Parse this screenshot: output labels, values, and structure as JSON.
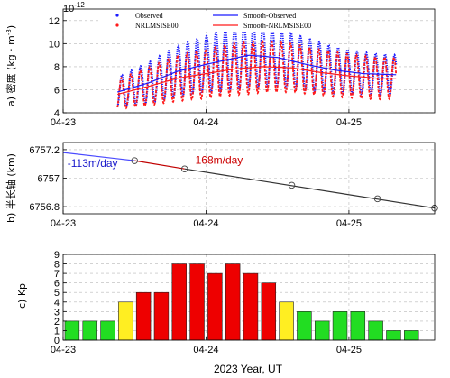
{
  "figure": {
    "xlabel": "2023 Year, UT"
  },
  "chart_data": [
    {
      "type": "line",
      "panel_label": "a)",
      "ylabel": "密度 (kg · m",
      "ylabel_exp": "-3",
      "ylabel_close": ")",
      "exponent": "10",
      "exponent_power": "-12",
      "xlim": [
        0,
        2.6
      ],
      "ylim": [
        4,
        13
      ],
      "yticks": [
        4,
        6,
        8,
        10,
        12
      ],
      "xticks": [
        {
          "x": 0,
          "label": "04-23"
        },
        {
          "x": 1,
          "label": "04-24"
        },
        {
          "x": 2,
          "label": "04-25"
        }
      ],
      "grid": true,
      "legend_placement": "top",
      "legend": [
        {
          "label": "Observed",
          "style": "dots",
          "color": "#1a1aff"
        },
        {
          "label": "Smooth-Observed",
          "style": "line",
          "color": "#1a1aff"
        },
        {
          "label": "NRLMSISE00",
          "style": "dots",
          "color": "#ff1a1a"
        },
        {
          "label": "Smooth-NRLMSISE00",
          "style": "line",
          "color": "#ff1a1a"
        }
      ],
      "oscillation": {
        "t_start": 0.38,
        "t_end": 2.33,
        "cycles_per_day": 15.2
      },
      "smooth_observed": {
        "t": [
          0.38,
          0.6,
          0.8,
          1.0,
          1.15,
          1.3,
          1.5,
          1.7,
          1.9,
          2.1,
          2.33
        ],
        "y": [
          5.8,
          6.6,
          7.6,
          8.2,
          8.6,
          9.0,
          8.8,
          8.2,
          7.7,
          7.4,
          7.3
        ]
      },
      "smooth_model": {
        "t": [
          0.38,
          0.6,
          0.8,
          1.0,
          1.2,
          1.4,
          1.6,
          1.8,
          2.0,
          2.2,
          2.33
        ],
        "y": [
          5.6,
          6.3,
          7.0,
          7.4,
          7.8,
          8.0,
          7.9,
          7.5,
          7.2,
          7.0,
          7.0
        ]
      },
      "amplitude_observed": {
        "t": [
          0.38,
          0.8,
          1.1,
          1.3,
          1.6,
          2.0,
          2.33
        ],
        "y": [
          1.3,
          2.2,
          2.6,
          2.8,
          2.4,
          1.9,
          1.7
        ]
      },
      "amplitude_model": {
        "t": [
          0.38,
          0.8,
          1.1,
          1.3,
          1.6,
          2.0,
          2.33
        ],
        "y": [
          1.3,
          2.0,
          2.2,
          2.3,
          2.1,
          1.9,
          1.8
        ]
      }
    },
    {
      "type": "line",
      "panel_label": "b)",
      "ylabel": "半长轴 (km)",
      "xlim": [
        0,
        2.6
      ],
      "ylim": [
        6756.75,
        6757.25
      ],
      "yticks": [
        6756.8,
        6757.0,
        6757.2
      ],
      "ytick_labels": [
        "6756.8",
        "6757",
        "6757.2"
      ],
      "xticks": [
        {
          "x": 0,
          "label": "04-23"
        },
        {
          "x": 1,
          "label": "04-24"
        },
        {
          "x": 2,
          "label": "04-25"
        }
      ],
      "grid": true,
      "series": [
        {
          "color": "#4a4aff",
          "x": [
            0,
            0.5
          ],
          "y": [
            6757.18,
            6757.123
          ]
        },
        {
          "color": "#c00000",
          "x": [
            0.5,
            0.85
          ],
          "y": [
            6757.123,
            6757.065
          ]
        },
        {
          "color": "#333333",
          "x": [
            0.85,
            2.6
          ],
          "y": [
            6757.065,
            6756.79
          ]
        }
      ],
      "markers": {
        "x": [
          0.5,
          0.85,
          1.6,
          2.2,
          2.6
        ],
        "y": [
          6757.123,
          6757.065,
          6756.95,
          6756.855,
          6756.79
        ]
      },
      "rates": [
        {
          "text": "-113m/day",
          "color": "#1a1acc",
          "x": 0.03,
          "y": 6757.08
        },
        {
          "text": "-168m/day",
          "color": "#cc0000",
          "x": 0.9,
          "y": 6757.1
        }
      ]
    },
    {
      "type": "bar",
      "panel_label": "c)",
      "ylabel": "Kp",
      "xlim": [
        0,
        2.6
      ],
      "ylim": [
        0,
        9
      ],
      "yticks": [
        0,
        1,
        2,
        3,
        4,
        5,
        6,
        7,
        8,
        9
      ],
      "xticks": [
        {
          "x": 0,
          "label": "04-23"
        },
        {
          "x": 1,
          "label": "04-24"
        },
        {
          "x": 2,
          "label": "04-25"
        }
      ],
      "grid": true,
      "bar_width_days": 0.1,
      "bars": [
        {
          "t": 0.0625,
          "kp": 2
        },
        {
          "t": 0.1875,
          "kp": 2
        },
        {
          "t": 0.3125,
          "kp": 2
        },
        {
          "t": 0.4375,
          "kp": 4
        },
        {
          "t": 0.5625,
          "kp": 5
        },
        {
          "t": 0.6875,
          "kp": 5
        },
        {
          "t": 0.8125,
          "kp": 8
        },
        {
          "t": 0.9375,
          "kp": 8
        },
        {
          "t": 1.0625,
          "kp": 7
        },
        {
          "t": 1.1875,
          "kp": 8
        },
        {
          "t": 1.3125,
          "kp": 7
        },
        {
          "t": 1.4375,
          "kp": 6
        },
        {
          "t": 1.5625,
          "kp": 4
        },
        {
          "t": 1.6875,
          "kp": 3
        },
        {
          "t": 1.8125,
          "kp": 2
        },
        {
          "t": 1.9375,
          "kp": 3
        },
        {
          "t": 2.0625,
          "kp": 3
        },
        {
          "t": 2.1875,
          "kp": 2
        },
        {
          "t": 2.3125,
          "kp": 1
        },
        {
          "t": 2.4375,
          "kp": 1
        }
      ],
      "colors": {
        "low": "#22dd22",
        "mid": "#ffee22",
        "high": "#ee0000",
        "edge": "#222222"
      }
    }
  ]
}
